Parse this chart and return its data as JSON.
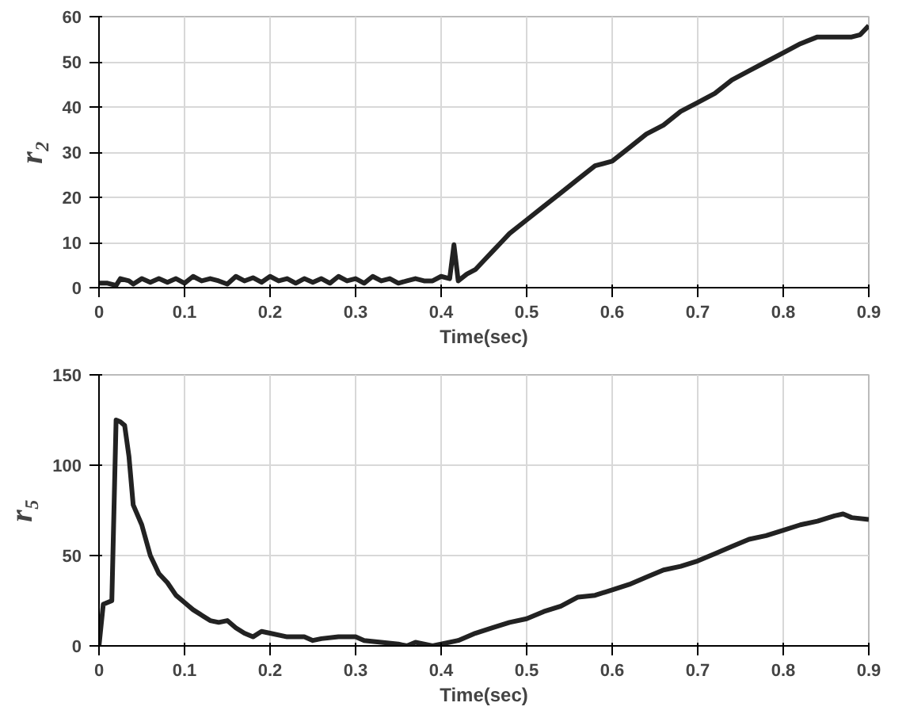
{
  "chart_data": [
    {
      "type": "line",
      "xlabel": "Time(sec)",
      "ylabel": "r₂",
      "xlim": [
        0,
        0.9
      ],
      "ylim": [
        0,
        60
      ],
      "xticks": [
        0,
        0.1,
        0.2,
        0.3,
        0.4,
        0.5,
        0.6,
        0.7,
        0.8,
        0.9
      ],
      "yticks": [
        0,
        10,
        20,
        30,
        40,
        50,
        60
      ],
      "grid": true,
      "series": [
        {
          "color": "#222222",
          "x": [
            0,
            0.01,
            0.02,
            0.025,
            0.035,
            0.04,
            0.05,
            0.06,
            0.07,
            0.08,
            0.09,
            0.1,
            0.11,
            0.12,
            0.13,
            0.14,
            0.15,
            0.16,
            0.17,
            0.18,
            0.19,
            0.2,
            0.21,
            0.22,
            0.23,
            0.24,
            0.25,
            0.26,
            0.27,
            0.28,
            0.29,
            0.3,
            0.31,
            0.32,
            0.33,
            0.34,
            0.35,
            0.36,
            0.37,
            0.38,
            0.39,
            0.4,
            0.41,
            0.415,
            0.42,
            0.43,
            0.44,
            0.45,
            0.46,
            0.47,
            0.48,
            0.5,
            0.52,
            0.54,
            0.56,
            0.58,
            0.6,
            0.62,
            0.64,
            0.66,
            0.68,
            0.7,
            0.72,
            0.74,
            0.76,
            0.78,
            0.8,
            0.82,
            0.84,
            0.86,
            0.88,
            0.89,
            0.9
          ],
          "values": [
            1,
            1,
            0.5,
            2,
            1.5,
            0.8,
            2,
            1.2,
            2,
            1.2,
            2,
            1,
            2.5,
            1.5,
            2,
            1.5,
            0.8,
            2.5,
            1.5,
            2.2,
            1.2,
            2.5,
            1.5,
            2,
            1,
            2,
            1.2,
            2,
            1,
            2.5,
            1.5,
            2,
            1,
            2.5,
            1.5,
            2,
            1,
            1.5,
            2,
            1.5,
            1.5,
            2.5,
            2,
            9.5,
            1.5,
            3,
            4,
            6,
            8,
            10,
            12,
            15,
            18,
            21,
            24,
            27,
            28,
            31,
            34,
            36,
            39,
            41,
            43,
            46,
            48,
            50,
            52,
            54,
            55.5,
            55.5,
            55.5,
            56,
            58
          ]
        }
      ]
    },
    {
      "type": "line",
      "xlabel": "Time(sec)",
      "ylabel": "r₅",
      "xlim": [
        0,
        0.9
      ],
      "ylim": [
        0,
        150
      ],
      "xticks": [
        0,
        0.1,
        0.2,
        0.3,
        0.4,
        0.5,
        0.6,
        0.7,
        0.8,
        0.9
      ],
      "yticks": [
        0,
        50,
        100,
        150
      ],
      "grid": true,
      "series": [
        {
          "color": "#222222",
          "x": [
            0,
            0.005,
            0.01,
            0.015,
            0.02,
            0.025,
            0.03,
            0.035,
            0.04,
            0.05,
            0.06,
            0.07,
            0.08,
            0.09,
            0.1,
            0.11,
            0.12,
            0.13,
            0.14,
            0.15,
            0.16,
            0.17,
            0.18,
            0.19,
            0.2,
            0.22,
            0.24,
            0.25,
            0.26,
            0.28,
            0.3,
            0.31,
            0.33,
            0.35,
            0.36,
            0.37,
            0.38,
            0.39,
            0.4,
            0.42,
            0.44,
            0.46,
            0.48,
            0.5,
            0.52,
            0.54,
            0.56,
            0.58,
            0.6,
            0.62,
            0.64,
            0.66,
            0.68,
            0.7,
            0.72,
            0.74,
            0.76,
            0.78,
            0.8,
            0.82,
            0.84,
            0.86,
            0.87,
            0.88,
            0.9
          ],
          "values": [
            0,
            23,
            24,
            25,
            125,
            124,
            122,
            105,
            78,
            67,
            50,
            40,
            35,
            28,
            24,
            20,
            17,
            14,
            13,
            14,
            10,
            7,
            5,
            8,
            7,
            5,
            5,
            3,
            4,
            5,
            5,
            3,
            2,
            1,
            0,
            2,
            1,
            0,
            1,
            3,
            7,
            10,
            13,
            15,
            19,
            22,
            27,
            28,
            31,
            34,
            38,
            42,
            44,
            47,
            51,
            55,
            59,
            61,
            64,
            67,
            69,
            72,
            73,
            71,
            70
          ]
        }
      ]
    }
  ]
}
